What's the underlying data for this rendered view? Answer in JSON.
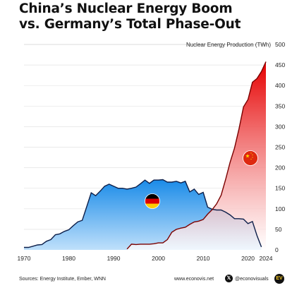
{
  "header": {
    "title_line1": "China’s Nuclear Energy Boom",
    "title_line2": "vs. Germany’s Total Phase-Out"
  },
  "footer": {
    "sources": "Sources: Energy Institute, Ember, WNN",
    "website": "www.econovis.net",
    "handle": "@econovisuals",
    "x_icon": "x-icon",
    "logo_icon": "econovis-logo-icon",
    "logo_text": "EV"
  },
  "colors": {
    "germany_fill_top": "#1a8be8",
    "germany_fill_bottom": "#bfe0fb",
    "germany_line": "#0d1f4a",
    "china_fill_top": "#e60000",
    "china_fill_bottom": "#ffffff",
    "china_line": "#7a0000"
  },
  "chart_data": {
    "type": "area",
    "title": "China’s Nuclear Energy Boom vs. Germany’s Total Phase-Out",
    "ylabel": "Nuclear Energy Production (TWh)",
    "xlim": [
      1970,
      2024
    ],
    "ylim": [
      0,
      500
    ],
    "x_ticks": [
      1970,
      1980,
      1990,
      2000,
      2010,
      2020,
      2024
    ],
    "y_ticks": [
      0,
      50,
      100,
      150,
      200,
      250,
      300,
      350,
      400,
      450,
      500
    ],
    "y_axis_position": "right",
    "grid": true,
    "series": [
      {
        "name": "Germany",
        "marker_icon": "germany-flag-icon",
        "x": [
          1970,
          1971,
          1972,
          1973,
          1974,
          1975,
          1976,
          1977,
          1978,
          1979,
          1980,
          1981,
          1982,
          1983,
          1984,
          1985,
          1986,
          1987,
          1988,
          1989,
          1990,
          1991,
          1992,
          1993,
          1994,
          1995,
          1996,
          1997,
          1998,
          1999,
          2000,
          2001,
          2002,
          2003,
          2004,
          2005,
          2006,
          2007,
          2008,
          2009,
          2010,
          2011,
          2012,
          2013,
          2014,
          2015,
          2016,
          2017,
          2018,
          2019,
          2020,
          2021,
          2022,
          2023
        ],
        "values": [
          6,
          6,
          9,
          12,
          13,
          21,
          25,
          37,
          39,
          45,
          49,
          59,
          68,
          72,
          105,
          139,
          132,
          143,
          155,
          160,
          155,
          150,
          150,
          148,
          150,
          153,
          161,
          170,
          162,
          170,
          170,
          171,
          165,
          165,
          167,
          163,
          167,
          141,
          148,
          135,
          140,
          104,
          99,
          97,
          97,
          92,
          85,
          76,
          76,
          75,
          64,
          69,
          35,
          7
        ]
      },
      {
        "name": "China",
        "marker_icon": "china-flag-icon",
        "x": [
          1993,
          1994,
          1995,
          1996,
          1997,
          1998,
          1999,
          2000,
          2001,
          2002,
          2003,
          2004,
          2005,
          2006,
          2007,
          2008,
          2009,
          2010,
          2011,
          2012,
          2013,
          2014,
          2015,
          2016,
          2017,
          2018,
          2019,
          2020,
          2021,
          2022,
          2023,
          2024
        ],
        "values": [
          2,
          14,
          13,
          14,
          14,
          14,
          15,
          17,
          17,
          25,
          43,
          50,
          53,
          55,
          62,
          68,
          70,
          74,
          87,
          98,
          112,
          133,
          171,
          213,
          248,
          295,
          348,
          366,
          408,
          417,
          434,
          458
        ]
      }
    ]
  }
}
